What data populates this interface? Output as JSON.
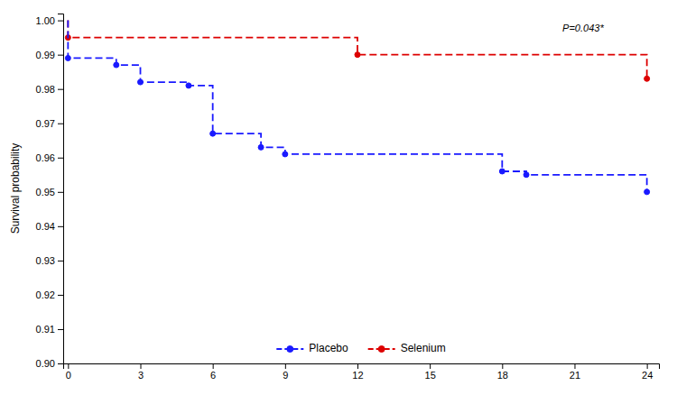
{
  "chart_data": {
    "type": "line",
    "ylabel": "Survival probability",
    "xlim": [
      -0.2,
      24.5
    ],
    "ylim": [
      0.9,
      1.002
    ],
    "xticks": [
      0,
      3,
      6,
      9,
      12,
      15,
      18,
      21,
      24
    ],
    "yticks": [
      {
        "value": 0.9,
        "label": "0.90"
      },
      0.91,
      0.92,
      0.93,
      0.94,
      0.95,
      0.96,
      0.97,
      0.98,
      0.99,
      {
        "value": 1.0,
        "label": "1.00"
      }
    ],
    "grid": false,
    "legend": "bottom",
    "annotations": [
      {
        "text": "P=0.043*",
        "x": 20.5,
        "y": 0.9976
      }
    ],
    "series": [
      {
        "name": "Placebo",
        "color": "#1a1aff",
        "line_style": "dashed",
        "marker": "circle",
        "x": [
          0,
          0,
          2,
          2,
          3,
          3,
          5,
          5,
          6,
          6,
          8,
          8,
          9,
          9,
          18,
          18,
          19,
          19,
          24,
          24
        ],
        "values": [
          1.0,
          0.989,
          0.989,
          0.987,
          0.987,
          0.982,
          0.982,
          0.981,
          0.981,
          0.967,
          0.967,
          0.963,
          0.963,
          0.961,
          0.961,
          0.956,
          0.956,
          0.955,
          0.955,
          0.95
        ],
        "marker_x": [
          0,
          2,
          3,
          5,
          6,
          8,
          9,
          18,
          19,
          24
        ],
        "marker_values": [
          0.989,
          0.987,
          0.982,
          0.981,
          0.967,
          0.963,
          0.961,
          0.956,
          0.955,
          0.95
        ]
      },
      {
        "name": "Selenium",
        "color": "#dd0000",
        "line_style": "dashed",
        "marker": "circle",
        "x": [
          0,
          0,
          12,
          12,
          24,
          24
        ],
        "values": [
          1.0,
          0.995,
          0.995,
          0.99,
          0.99,
          0.983
        ],
        "marker_x": [
          0,
          12,
          24
        ],
        "marker_values": [
          0.995,
          0.99,
          0.983
        ]
      }
    ]
  }
}
